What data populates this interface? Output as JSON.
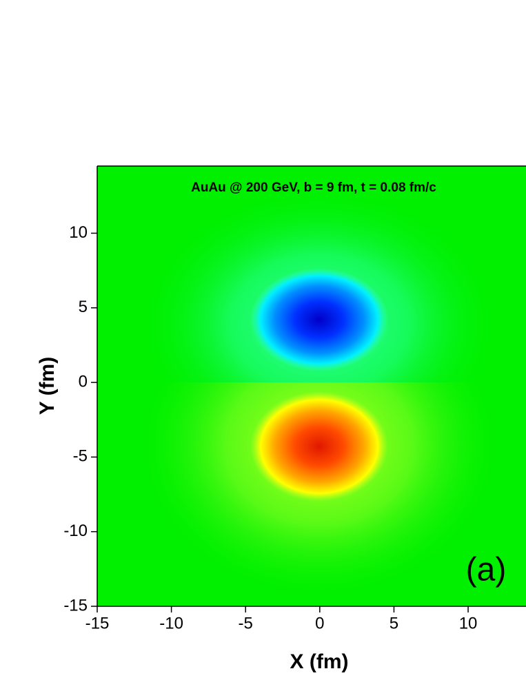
{
  "chart_data": {
    "type": "contour",
    "title": "AuAu @ 200 GeV, b = 9 fm, t = 0.08 fm/c",
    "annotation": "(a)",
    "x_label": "X (fm)",
    "y_label": "Y (fm)",
    "xlim": [
      -15,
      13.9
    ],
    "ylim": [
      -15,
      14.5
    ],
    "xticks": [
      -15,
      -10,
      -5,
      0,
      5,
      10
    ],
    "yticks": [
      -15,
      -10,
      -5,
      0,
      5,
      10
    ],
    "background_color": "#00f000"
  }
}
